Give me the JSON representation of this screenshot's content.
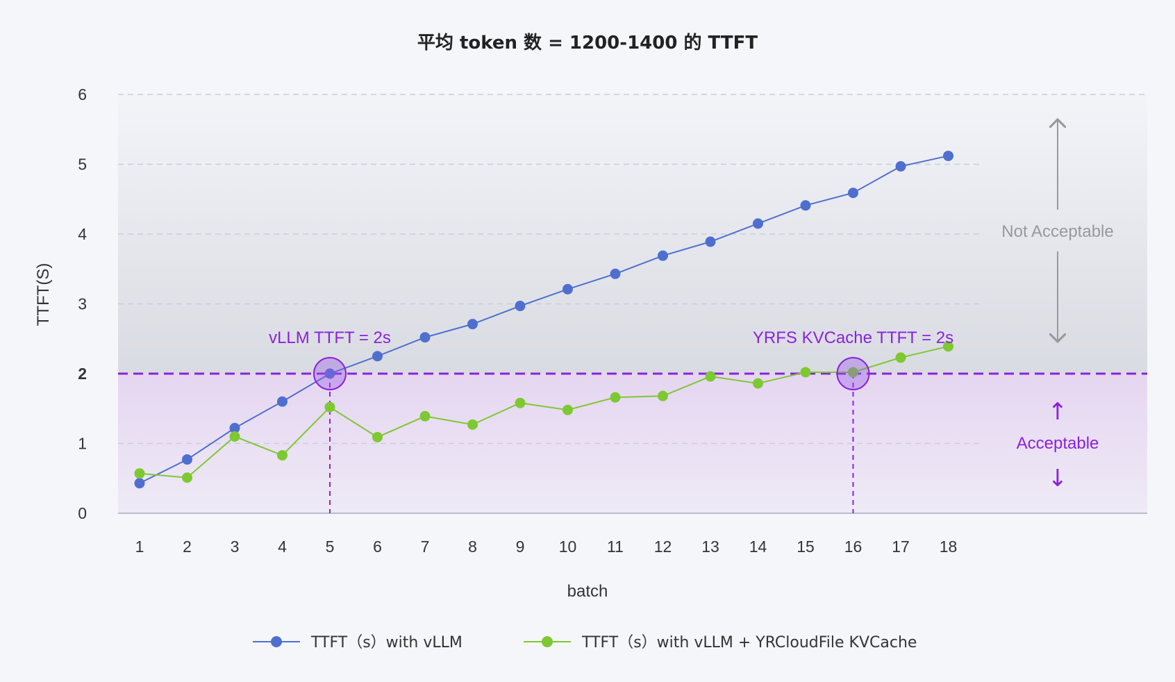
{
  "chart_data": {
    "type": "line",
    "title": "平均 token 数 = 1200-1400 的 TTFT",
    "xlabel": "batch",
    "ylabel": "TTFT(S)",
    "categories": [
      "1",
      "2",
      "3",
      "4",
      "5",
      "6",
      "7",
      "8",
      "9",
      "10",
      "11",
      "12",
      "13",
      "14",
      "15",
      "16",
      "17",
      "18"
    ],
    "yticks": [
      "0",
      "1",
      "2",
      "3",
      "4",
      "5",
      "6"
    ],
    "ylim": [
      0,
      6
    ],
    "grid": true,
    "legend_position": "bottom",
    "series": [
      {
        "name": "TTFT（s）with vLLM",
        "color": "#4f6fcf",
        "values": [
          0.43,
          0.77,
          1.22,
          1.6,
          2.0,
          2.25,
          2.52,
          2.71,
          2.97,
          3.21,
          3.43,
          3.69,
          3.89,
          4.15,
          4.41,
          4.59,
          4.97,
          5.12
        ]
      },
      {
        "name": "TTFT（s）with vLLM + YRCloudFile KVCache",
        "color": "#7ec832",
        "values": [
          0.57,
          0.51,
          1.1,
          0.83,
          1.52,
          1.09,
          1.39,
          1.27,
          1.58,
          1.48,
          1.66,
          1.68,
          1.96,
          1.86,
          2.02,
          2.02,
          2.23,
          2.39
        ]
      }
    ],
    "threshold": {
      "value": 2,
      "label": "2",
      "color": "#8a22dd"
    },
    "annotations": {
      "vllm_label": "vLLM TTFT = 2s",
      "vllm_batch": 5,
      "yrfs_label": "YRFS KVCache TTFT = 2s",
      "yrfs_batch": 16,
      "not_acceptable": "Not Acceptable",
      "acceptable": "Acceptable"
    }
  },
  "colors": {
    "background": "#f5f6fa",
    "grid": "#c9cbdc",
    "gray_annotation": "#999999",
    "purple": "#8a22dd"
  }
}
